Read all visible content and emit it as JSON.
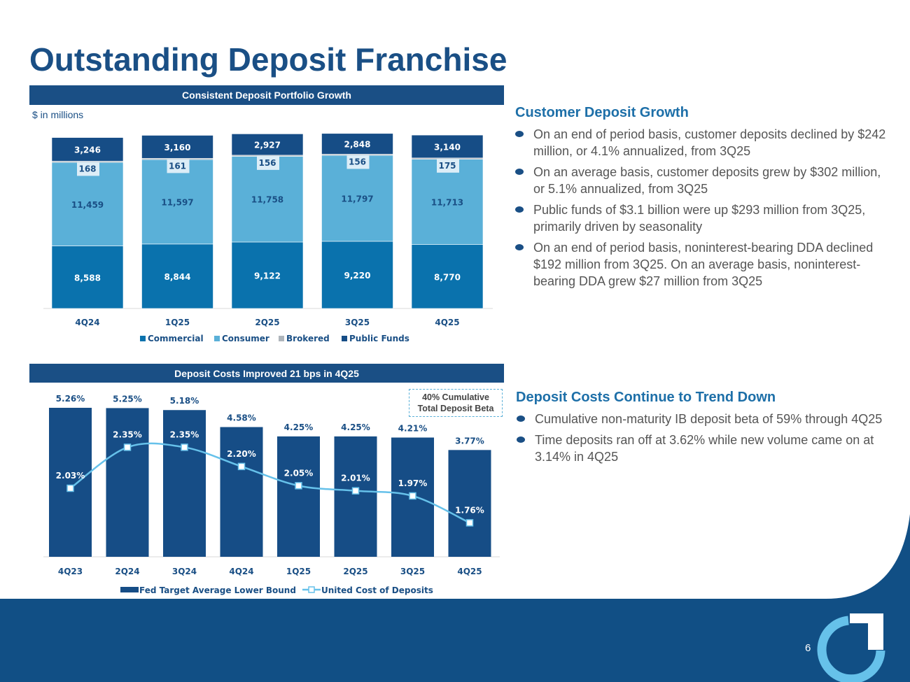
{
  "slide": {
    "title": "Outstanding Deposit Franchise",
    "page_number": "6",
    "colors": {
      "navy": "#1a4f85",
      "commercial": "#0a72ad",
      "consumer": "#5ab0d8",
      "brokered": "#aeb5bb",
      "public_funds": "#164d86",
      "line": "#66c1ea"
    }
  },
  "top_chart_header": "Consistent Deposit Portfolio Growth",
  "top_chart_unit": "$ in millions",
  "bottom_chart_header": "Deposit Costs Improved 21 bps in 4Q25",
  "beta_box": {
    "line1": "40% Cumulative",
    "line2": "Total Deposit Beta"
  },
  "right_top": {
    "heading": "Customer Deposit Growth",
    "bullets": [
      "On an end of period basis, customer deposits declined by $242 million, or 4.1% annualized, from 3Q25",
      "On an average basis, customer deposits grew by $302 million, or 5.1% annualized, from 3Q25",
      "Public funds of $3.1 billion were up $293 million from 3Q25, primarily driven by seasonality",
      "On an end of period basis, noninterest-bearing DDA declined $192 million from 3Q25. On an average basis, noninterest-bearing DDA grew $27 million from 3Q25"
    ]
  },
  "right_bottom": {
    "heading": "Deposit Costs Continue to Trend Down",
    "bullets": [
      "Cumulative non-maturity IB deposit beta of 59% through 4Q25",
      "Time deposits ran off at 3.62% while new volume came on at 3.14% in 4Q25"
    ]
  },
  "chart_data": [
    {
      "type": "bar",
      "stacked": true,
      "title": "Consistent Deposit Portfolio Growth",
      "ylabel": "$ in millions",
      "categories": [
        "4Q24",
        "1Q25",
        "2Q25",
        "3Q25",
        "4Q25"
      ],
      "series": [
        {
          "name": "Commercial",
          "values": [
            8588,
            8844,
            9122,
            9220,
            8770
          ],
          "labels": [
            "8,588",
            "8,844",
            "9,122",
            "9,220",
            "8,770"
          ]
        },
        {
          "name": "Consumer",
          "values": [
            11459,
            11597,
            11758,
            11797,
            11713
          ],
          "labels": [
            "11,459",
            "11,597",
            "11,758",
            "11,797",
            "11,713"
          ]
        },
        {
          "name": "Brokered",
          "values": [
            168,
            161,
            156,
            156,
            175
          ],
          "labels": [
            "168",
            "161",
            "156",
            "156",
            "175"
          ]
        },
        {
          "name": "Public Funds",
          "values": [
            3246,
            3160,
            2927,
            2848,
            3140
          ],
          "labels": [
            "3,246",
            "3,160",
            "2,927",
            "2,848",
            "3,140"
          ]
        }
      ],
      "legend": "bottom"
    },
    {
      "type": "bar",
      "title": "Deposit Costs Improved 21 bps in 4Q25",
      "categories": [
        "4Q23",
        "2Q24",
        "3Q24",
        "4Q24",
        "1Q25",
        "2Q25",
        "3Q25",
        "4Q25"
      ],
      "series": [
        {
          "name": "Fed Target Average Lower Bound",
          "type": "bar",
          "values": [
            5.26,
            5.25,
            5.18,
            4.58,
            4.25,
            4.25,
            4.21,
            3.77
          ],
          "labels": [
            "5.26%",
            "5.25%",
            "5.18%",
            "4.58%",
            "4.25%",
            "4.25%",
            "4.21%",
            "3.77%"
          ]
        },
        {
          "name": "United Cost of Deposits",
          "type": "line",
          "values": [
            2.03,
            2.35,
            2.35,
            2.2,
            2.05,
            2.01,
            1.97,
            1.76
          ],
          "labels": [
            "2.03%",
            "2.35%",
            "2.35%",
            "2.20%",
            "2.05%",
            "2.01%",
            "1.97%",
            "1.76%"
          ]
        }
      ],
      "legend": "bottom"
    }
  ]
}
